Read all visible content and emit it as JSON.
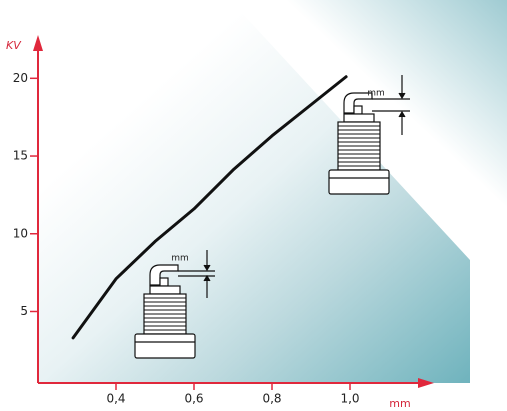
{
  "chart_data": {
    "type": "line",
    "y_label": "KV",
    "x_label": "mm",
    "annotations": [
      "mm",
      "mm"
    ],
    "x": [
      0.29,
      0.4,
      0.5,
      0.6,
      0.7,
      0.8,
      0.9,
      0.99
    ],
    "series": [
      {
        "color": "#111111",
        "values": [
          3.3,
          7.1,
          9.5,
          11.6,
          14.1,
          16.3,
          18.3,
          20.1
        ]
      }
    ],
    "xlim": [
      0.2,
      1.2
    ],
    "ylim": [
      0.4,
      22.4
    ],
    "xticks": [
      {
        "value": 0.4,
        "label": "0,4"
      },
      {
        "value": 0.6,
        "label": "0,6"
      },
      {
        "value": 0.8,
        "label": "0,8"
      },
      {
        "value": 1.0,
        "label": "1,0"
      }
    ],
    "yticks": [
      5,
      10,
      15,
      20
    ],
    "axis_color": "#e0283c"
  }
}
